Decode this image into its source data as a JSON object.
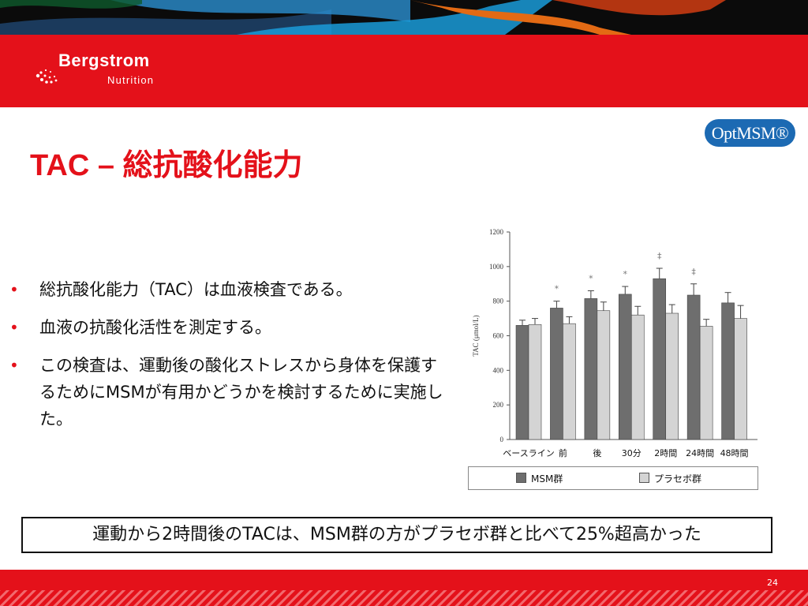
{
  "logo": {
    "name": "Bergstrom",
    "subtitle": "Nutrition"
  },
  "brand_badge": "OptMSM®",
  "title": "TAC – 総抗酸化能力",
  "bullets": [
    "総抗酸化能力（TAC）は血液検査である。",
    "血液の抗酸化活性を測定する。",
    "この検査は、運動後の酸化ストレスから身体を保護するためにMSMが有用かどうかを検討するために実施した。"
  ],
  "conclusion": "運動から2時間後のTACは、MSM群の方がプラセボ群と比べて25%超高かった",
  "page_number": "24",
  "colors": {
    "accent_red": "#e4111a",
    "msm_bar": "#6e6e6e",
    "placebo_bar": "#d4d4d4",
    "badge_blue": "#1c6ab3"
  },
  "chart_data": {
    "type": "bar",
    "title": "",
    "xlabel": "",
    "ylabel": "TAC (μmol/L)",
    "ylim": [
      0,
      1200
    ],
    "yticks": [
      "0",
      "200",
      "400",
      "600",
      "800",
      "1000",
      "1200"
    ],
    "categories": [
      "ベースライン",
      "前",
      "後",
      "30分",
      "2時間",
      "24時間",
      "48時間"
    ],
    "series": [
      {
        "name": "MSM群",
        "values": [
          660,
          760,
          815,
          840,
          930,
          835,
          790
        ],
        "errors": [
          30,
          40,
          45,
          45,
          60,
          65,
          60
        ]
      },
      {
        "name": "プラセボ群",
        "values": [
          665,
          670,
          745,
          720,
          730,
          655,
          700
        ],
        "errors": [
          35,
          40,
          50,
          50,
          50,
          40,
          75
        ]
      }
    ],
    "significance_marks": [
      "",
      "*",
      "*",
      "*",
      "‡",
      "‡",
      ""
    ],
    "legend_position": "bottom",
    "grid": false
  }
}
